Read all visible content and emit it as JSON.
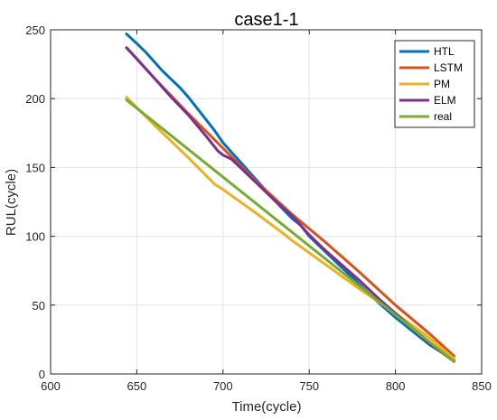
{
  "chart_data": {
    "type": "line",
    "title": "case1-1",
    "xlabel": "Time(cycle)",
    "ylabel": "RUL(cycle)",
    "xlim": [
      600,
      850
    ],
    "ylim": [
      0,
      250
    ],
    "xticks": [
      600,
      650,
      700,
      750,
      800,
      850
    ],
    "yticks": [
      0,
      50,
      100,
      150,
      200,
      250
    ],
    "grid": true,
    "legend_position": "top-right",
    "series": [
      {
        "name": "HTL",
        "color": "#0072BD",
        "x": [
          644,
          650,
          655,
          660,
          665,
          670,
          675,
          680,
          685,
          690,
          695,
          700,
          705,
          710,
          720,
          730,
          740,
          745,
          750,
          760,
          770,
          780,
          790,
          800,
          810,
          820,
          834
        ],
        "y": [
          247,
          240,
          234,
          227,
          220,
          214,
          208,
          201,
          193,
          185,
          177,
          168,
          161,
          154,
          140,
          126,
          113,
          108,
          100,
          88,
          76,
          64,
          52,
          41,
          31,
          21,
          10
        ]
      },
      {
        "name": "LSTM",
        "color": "#D95319",
        "x": [
          644,
          660,
          680,
          700,
          720,
          740,
          760,
          780,
          800,
          820,
          834
        ],
        "y": [
          237,
          215,
          189,
          164,
          139,
          116,
          95,
          73,
          50,
          29,
          13
        ]
      },
      {
        "name": "PM",
        "color": "#EDB120",
        "x": [
          644,
          660,
          680,
          695,
          700,
          720,
          735,
          740,
          760,
          780,
          800,
          820,
          834
        ],
        "y": [
          201,
          181,
          157,
          138,
          134,
          116,
          102,
          97,
          79,
          61,
          44,
          26,
          11
        ]
      },
      {
        "name": "ELM",
        "color": "#7E2F8E",
        "x": [
          644,
          650,
          660,
          670,
          680,
          690,
          697,
          700,
          705,
          710,
          720,
          730,
          740,
          745,
          750,
          760,
          770,
          780,
          790,
          800,
          810,
          820,
          834
        ],
        "y": [
          237,
          229,
          215,
          201,
          188,
          173,
          162,
          159,
          156,
          150,
          138,
          126,
          115,
          108,
          101,
          89,
          78,
          67,
          55,
          44,
          33,
          22,
          9
        ]
      },
      {
        "name": "real",
        "color": "#77AC30",
        "x": [
          644,
          834
        ],
        "y": [
          199,
          9
        ]
      }
    ]
  }
}
